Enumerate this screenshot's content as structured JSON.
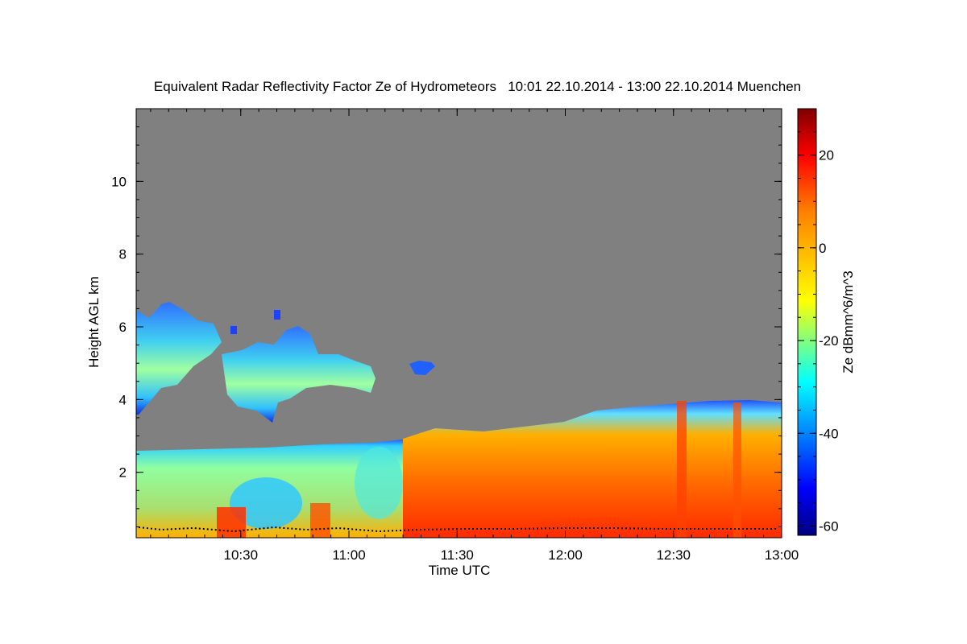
{
  "chart_data": {
    "type": "heatmap",
    "title": "Equivalent Radar Reflectivity Factor Ze of Hydrometeors   10:01 22.10.2014 - 13:00 22.10.2014 Muenchen",
    "xlabel": "Time UTC",
    "ylabel": "Height AGL km",
    "colorbar_label": "Ze dBmm^6/m^3",
    "x_range": [
      "10:01",
      "13:00"
    ],
    "x_ticks": [
      "10:30",
      "11:00",
      "11:30",
      "12:00",
      "12:30",
      "13:00"
    ],
    "y_range": [
      0.2,
      12
    ],
    "y_ticks": [
      "2",
      "4",
      "6",
      "8",
      "10"
    ],
    "colorbar_range": [
      -62,
      30
    ],
    "colorbar_ticks": [
      "20",
      "0",
      "-20",
      "-40",
      "-60"
    ],
    "background_color": "#808080",
    "colormap": "jet",
    "features": {
      "lower_layer_top_km": [
        {
          "time": "10:01",
          "height": 2.6
        },
        {
          "time": "11:00",
          "height": 2.65
        },
        {
          "time": "11:30",
          "height": 2.9
        },
        {
          "time": "12:00",
          "height": 3.3
        },
        {
          "time": "12:30",
          "height": 3.8
        },
        {
          "time": "13:00",
          "height": 3.9
        }
      ],
      "upper_cloud_base_km": 3.5,
      "upper_cloud_top_km": 6.6,
      "upper_cloud_end_time": "11:25",
      "mean_reflectivity_dbz": {
        "10:01-11:15": -10,
        "11:15-13:00": 12
      }
    }
  }
}
